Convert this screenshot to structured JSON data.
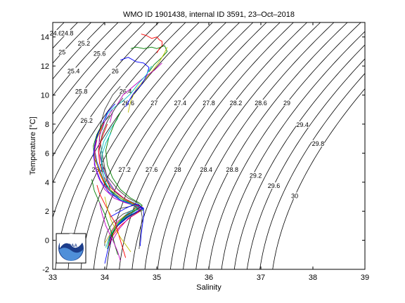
{
  "chart_data": {
    "type": "line",
    "title": "WMO ID 1901438, internal ID 3591, 23–Oct–2018",
    "xlabel": "Salinity",
    "ylabel": "Temperature [°C]",
    "xlim": [
      33,
      39
    ],
    "ylim": [
      -2,
      15
    ],
    "xticks": [
      "33",
      "34",
      "35",
      "36",
      "37",
      "38",
      "39"
    ],
    "yticks": [
      "-2",
      "0",
      "2",
      "4",
      "6",
      "8",
      "10",
      "12",
      "14"
    ],
    "grid": false,
    "logo_text": "NOAA",
    "density_contours": {
      "start": 24.6,
      "end": 30.0,
      "step": 0.2,
      "color": "#000000",
      "labels": [
        {
          "text": "24.6",
          "s": 33.06,
          "t": 14.2
        },
        {
          "text": "24.8",
          "s": 33.28,
          "t": 14.2
        },
        {
          "text": "25",
          "s": 33.18,
          "t": 12.9
        },
        {
          "text": "25.2",
          "s": 33.6,
          "t": 13.5
        },
        {
          "text": "25.4",
          "s": 33.4,
          "t": 11.6
        },
        {
          "text": "25.6",
          "s": 33.9,
          "t": 12.8
        },
        {
          "text": "25.8",
          "s": 33.55,
          "t": 10.2
        },
        {
          "text": "26",
          "s": 34.2,
          "t": 11.6
        },
        {
          "text": "26.2",
          "s": 33.65,
          "t": 8.2
        },
        {
          "text": "26.4",
          "s": 34.4,
          "t": 10.2
        },
        {
          "text": "26.6",
          "s": 34.45,
          "t": 9.4
        },
        {
          "text": "26.8",
          "s": 33.87,
          "t": 4.8
        },
        {
          "text": "27",
          "s": 34.95,
          "t": 9.4
        },
        {
          "text": "27.2",
          "s": 34.38,
          "t": 4.8
        },
        {
          "text": "27.4",
          "s": 35.45,
          "t": 9.4
        },
        {
          "text": "27.6",
          "s": 34.9,
          "t": 4.8
        },
        {
          "text": "27.8",
          "s": 36.0,
          "t": 9.4
        },
        {
          "text": "28",
          "s": 35.4,
          "t": 4.8
        },
        {
          "text": "28.2",
          "s": 36.52,
          "t": 9.4
        },
        {
          "text": "28.4",
          "s": 35.95,
          "t": 4.8
        },
        {
          "text": "28.6",
          "s": 37.0,
          "t": 9.4
        },
        {
          "text": "28.8",
          "s": 36.45,
          "t": 4.8
        },
        {
          "text": "29",
          "s": 37.5,
          "t": 9.4
        },
        {
          "text": "29.2",
          "s": 36.9,
          "t": 4.4
        },
        {
          "text": "29.4",
          "s": 37.8,
          "t": 7.9
        },
        {
          "text": "29.6",
          "s": 37.25,
          "t": 3.7
        },
        {
          "text": "29.8",
          "s": 38.1,
          "t": 6.6
        },
        {
          "text": "30",
          "s": 37.65,
          "t": 3.0
        }
      ]
    },
    "profile_colors": [
      "#0000ff",
      "#008000",
      "#ff0000",
      "#00bfbf",
      "#bf00bf",
      "#bfbf00",
      "#404040"
    ],
    "series": [
      {
        "color": "#ff0000",
        "s": [
          34.7,
          34.8,
          34.9,
          35.0,
          35.05,
          35.1,
          35.1,
          35.05,
          35.0
        ],
        "t": [
          14.2,
          14.1,
          13.9,
          14.0,
          13.8,
          13.7,
          13.4,
          13.2,
          12.9
        ]
      },
      {
        "color": "#008000",
        "s": [
          34.5,
          34.6,
          34.75,
          34.9,
          35.0,
          35.15,
          35.2,
          35.1,
          34.95,
          34.85
        ],
        "t": [
          13.2,
          13.3,
          13.2,
          13.3,
          13.2,
          13.4,
          13.0,
          12.6,
          12.1,
          11.6
        ]
      },
      {
        "color": "#bfbf00",
        "s": [
          35.2,
          35.15,
          35.05,
          34.9,
          34.75,
          34.6,
          34.5,
          34.45
        ],
        "t": [
          13.3,
          12.9,
          12.3,
          11.6,
          11.0,
          10.4,
          9.6,
          8.8
        ]
      },
      {
        "color": "#0000ff",
        "s": [
          34.3,
          34.45,
          34.6,
          34.75,
          34.85,
          34.8,
          34.7,
          34.55,
          34.4
        ],
        "t": [
          12.4,
          12.6,
          12.3,
          12.2,
          11.9,
          11.3,
          10.7,
          10.1,
          9.2
        ]
      },
      {
        "color": "#bf00bf",
        "s": [
          35.1,
          34.95,
          34.75,
          34.55,
          34.35,
          34.25,
          34.15,
          34.1
        ],
        "t": [
          12.2,
          11.7,
          11.2,
          10.6,
          10.0,
          9.4,
          8.8,
          8.1
        ]
      },
      {
        "color": "#00bfbf",
        "s": [
          34.9,
          34.8,
          34.65,
          34.5,
          34.35,
          34.2,
          34.05,
          34.0,
          33.95
        ],
        "t": [
          12.0,
          11.4,
          10.8,
          10.1,
          9.6,
          9.2,
          8.7,
          8.2,
          7.6
        ]
      },
      {
        "color": "#404040",
        "s": [
          34.3,
          34.15,
          34.0,
          33.92,
          33.9,
          33.95,
          34.0,
          34.05,
          34.1,
          34.3,
          34.5,
          34.6,
          34.55,
          34.35,
          34.15,
          34.05,
          34.0,
          34.0
        ],
        "t": [
          10.6,
          10.0,
          9.0,
          8.0,
          7.0,
          6.0,
          5.0,
          4.3,
          3.5,
          2.9,
          2.6,
          2.3,
          2.1,
          1.8,
          1.2,
          0.6,
          0.0,
          -0.4
        ]
      },
      {
        "color": "#0000ff",
        "s": [
          34.2,
          34.05,
          33.95,
          33.85,
          33.8,
          33.85,
          33.95,
          34.05,
          34.2,
          34.45,
          34.65,
          34.75,
          34.65,
          34.45,
          34.25,
          34.15,
          34.1
        ],
        "t": [
          9.4,
          8.8,
          8.0,
          7.2,
          6.3,
          5.4,
          4.4,
          3.6,
          3.1,
          2.6,
          2.4,
          2.2,
          2.0,
          1.6,
          1.0,
          0.4,
          -0.3
        ]
      },
      {
        "color": "#008000",
        "s": [
          34.1,
          33.95,
          33.85,
          33.78,
          33.8,
          33.9,
          34.0,
          34.15,
          34.35,
          34.55,
          34.7,
          34.75,
          34.6,
          34.4,
          34.2,
          34.1,
          34.05
        ],
        "t": [
          8.6,
          8.0,
          7.3,
          6.5,
          5.6,
          4.8,
          3.9,
          3.3,
          2.8,
          2.5,
          2.3,
          2.1,
          1.9,
          1.5,
          0.9,
          0.2,
          -0.6
        ]
      },
      {
        "color": "#ff0000",
        "s": [
          34.0,
          33.88,
          33.8,
          33.82,
          33.9,
          34.02,
          34.2,
          34.4,
          34.6,
          34.72,
          34.68,
          34.5,
          34.3,
          34.15
        ],
        "t": [
          8.2,
          7.4,
          6.5,
          5.6,
          4.6,
          3.7,
          3.0,
          2.6,
          2.4,
          2.3,
          2.0,
          1.6,
          1.0,
          0.3
        ]
      },
      {
        "color": "#bf00bf",
        "s": [
          34.15,
          34.0,
          33.9,
          33.88,
          33.95,
          34.05,
          34.2,
          34.4,
          34.58,
          34.7,
          34.62,
          34.42,
          34.25,
          34.12,
          34.05
        ],
        "t": [
          9.0,
          8.2,
          7.2,
          6.1,
          5.1,
          4.2,
          3.4,
          2.8,
          2.5,
          2.3,
          2.1,
          1.8,
          1.3,
          0.6,
          -0.2
        ]
      },
      {
        "color": "#00bfbf",
        "s": [
          34.25,
          34.1,
          33.98,
          33.92,
          33.95,
          34.05,
          34.2,
          34.35,
          34.55,
          34.68,
          34.62,
          34.45,
          34.28,
          34.15
        ],
        "t": [
          8.4,
          7.6,
          6.8,
          5.9,
          5.0,
          4.1,
          3.3,
          2.9,
          2.6,
          2.4,
          2.2,
          1.9,
          1.3,
          0.5
        ]
      },
      {
        "color": "#bfbf00",
        "s": [
          33.95,
          33.85,
          33.8,
          33.85,
          33.95,
          34.1,
          34.3,
          34.5,
          34.62,
          34.55,
          34.35,
          34.2,
          34.1,
          34.0
        ],
        "t": [
          7.8,
          7.0,
          6.1,
          5.2,
          4.3,
          3.5,
          2.9,
          2.6,
          2.3,
          2.0,
          1.6,
          1.0,
          0.4,
          -0.2
        ]
      },
      {
        "color": "#404040",
        "s": [
          34.35,
          34.2,
          34.05,
          33.95,
          33.9,
          33.95,
          34.05,
          34.25,
          34.45,
          34.62,
          34.7,
          34.58,
          34.38,
          34.2,
          34.08
        ],
        "t": [
          9.8,
          9.1,
          8.2,
          7.3,
          6.3,
          5.3,
          4.4,
          3.5,
          2.9,
          2.6,
          2.3,
          2.0,
          1.5,
          0.8,
          0.0
        ]
      },
      {
        "color": "#0000ff",
        "s": [
          33.9,
          33.82,
          33.78,
          33.82,
          33.92,
          34.08,
          34.28,
          34.48,
          34.65,
          34.72,
          34.58,
          34.38,
          34.22,
          34.12,
          34.05,
          34.0
        ],
        "t": [
          7.6,
          6.8,
          5.9,
          5.0,
          4.1,
          3.3,
          2.8,
          2.5,
          2.3,
          2.2,
          1.9,
          1.5,
          0.9,
          0.2,
          -0.8,
          -1.6
        ]
      },
      {
        "color": "#ff0000",
        "s": [
          34.05,
          33.95,
          33.88,
          33.9,
          33.98,
          34.12,
          34.32,
          34.52,
          34.66,
          34.6,
          34.42,
          34.25,
          34.15,
          34.08
        ],
        "t": [
          8.0,
          7.1,
          6.2,
          5.3,
          4.4,
          3.6,
          3.0,
          2.6,
          2.4,
          2.1,
          1.7,
          1.1,
          0.4,
          -0.4
        ]
      },
      {
        "color": "#008000",
        "s": [
          34.3,
          34.18,
          34.08,
          34.02,
          34.05,
          34.15,
          34.3,
          34.5,
          34.65,
          34.72,
          34.6,
          34.4,
          34.22,
          34.12
        ],
        "t": [
          8.8,
          8.0,
          7.1,
          6.2,
          5.2,
          4.3,
          3.5,
          2.9,
          2.6,
          2.4,
          2.1,
          1.7,
          1.0,
          0.2
        ]
      },
      {
        "color": "#bf00bf",
        "s": [
          33.85,
          33.8,
          33.8,
          33.88,
          34.0,
          34.18,
          34.38,
          34.56,
          34.68,
          34.62,
          34.45,
          34.28,
          34.15
        ],
        "t": [
          6.9,
          6.1,
          5.2,
          4.3,
          3.5,
          2.9,
          2.6,
          2.4,
          2.2,
          1.9,
          1.5,
          0.8,
          0.0
        ]
      },
      {
        "color": "#00bfbf",
        "s": [
          34.12,
          34.02,
          33.95,
          33.94,
          34.0,
          34.12,
          34.3,
          34.5,
          34.64,
          34.58,
          34.4,
          34.22,
          34.1,
          34.02
        ],
        "t": [
          7.4,
          6.7,
          5.9,
          5.0,
          4.1,
          3.3,
          2.8,
          2.5,
          2.3,
          2.0,
          1.6,
          1.0,
          0.3,
          -0.5
        ]
      },
      {
        "color": "#404040",
        "s": [
          34.2,
          34.3,
          34.45,
          34.55,
          34.6,
          34.62,
          34.65,
          34.7,
          34.72,
          34.7,
          34.68,
          34.66
        ],
        "t": [
          2.0,
          2.2,
          2.3,
          2.4,
          2.3,
          2.2,
          2.1,
          2.0,
          1.6,
          1.0,
          0.2,
          -0.6
        ]
      },
      {
        "color": "#0000ff",
        "s": [
          34.1,
          34.25,
          34.4,
          34.52,
          34.6,
          34.66,
          34.7,
          34.74,
          34.75,
          34.73,
          34.7,
          34.68
        ],
        "t": [
          1.6,
          1.9,
          2.2,
          2.4,
          2.5,
          2.4,
          2.3,
          2.2,
          1.8,
          1.2,
          0.4,
          -0.4
        ]
      },
      {
        "color": "#ff0000",
        "s": [
          33.85,
          33.9,
          34.0,
          34.1,
          34.2,
          34.25,
          34.3,
          34.35,
          34.4
        ],
        "t": [
          3.8,
          3.2,
          2.5,
          1.8,
          1.2,
          0.6,
          0.0,
          -0.6,
          -1.2
        ]
      },
      {
        "color": "#008000",
        "s": [
          33.75,
          33.8,
          33.9,
          34.0,
          34.08,
          34.15,
          34.2,
          34.25
        ],
        "t": [
          4.2,
          3.4,
          2.6,
          1.8,
          1.0,
          0.3,
          -0.4,
          -1.0
        ]
      },
      {
        "color": "#bfbf00",
        "s": [
          34.0,
          34.05,
          34.12,
          34.2,
          34.3,
          34.4,
          34.5
        ],
        "t": [
          3.0,
          2.2,
          1.4,
          0.8,
          0.2,
          -0.3,
          -0.8
        ]
      },
      {
        "color": "#bf00bf",
        "s": [
          33.9,
          33.95,
          34.02,
          34.1,
          34.18,
          34.25,
          34.3
        ],
        "t": [
          2.6,
          1.8,
          1.0,
          0.4,
          -0.2,
          -0.8,
          -1.4
        ]
      }
    ]
  }
}
